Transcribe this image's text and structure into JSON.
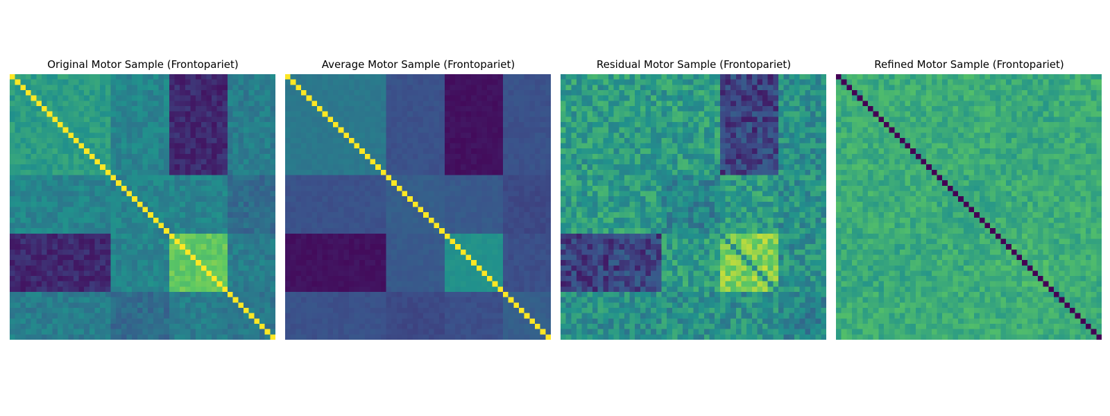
{
  "colormap": [
    "#440154",
    "#3b528b",
    "#21918c",
    "#5ec962",
    "#fde725"
  ],
  "chart_data": [
    {
      "type": "heatmap",
      "title": "Original Motor Sample (Frontopariet)",
      "size": 50,
      "colormap": "viridis",
      "axes": "off",
      "block_boundaries": [
        0,
        19,
        30,
        41,
        50
      ],
      "block_values": [
        [
          0.55,
          0.45,
          0.12,
          0.42
        ],
        [
          0.45,
          0.45,
          0.45,
          0.35
        ],
        [
          0.12,
          0.45,
          0.75,
          0.42
        ],
        [
          0.42,
          0.35,
          0.42,
          0.4
        ]
      ],
      "diagonal_value": 1.0,
      "noise": 0.06
    },
    {
      "type": "heatmap",
      "title": "Average Motor Sample (Frontopariet)",
      "size": 50,
      "colormap": "viridis",
      "axes": "off",
      "block_boundaries": [
        0,
        19,
        30,
        41,
        50
      ],
      "block_values": [
        [
          0.4,
          0.25,
          0.05,
          0.25
        ],
        [
          0.25,
          0.3,
          0.28,
          0.22
        ],
        [
          0.05,
          0.28,
          0.5,
          0.24
        ],
        [
          0.25,
          0.22,
          0.24,
          0.3
        ]
      ],
      "diagonal_value": 1.0,
      "noise": 0.02
    },
    {
      "type": "heatmap",
      "title": "Residual Motor Sample (Frontopariet)",
      "size": 50,
      "colormap": "viridis",
      "axes": "off",
      "block_boundaries": [
        0,
        19,
        30,
        41,
        50
      ],
      "block_values": [
        [
          0.55,
          0.55,
          0.2,
          0.5
        ],
        [
          0.55,
          0.45,
          0.55,
          0.5
        ],
        [
          0.2,
          0.55,
          0.8,
          0.5
        ],
        [
          0.5,
          0.5,
          0.5,
          0.45
        ]
      ],
      "diagonal_value": 0.45,
      "noise": 0.12
    },
    {
      "type": "heatmap",
      "title": "Refined Motor Sample (Frontopariet)",
      "size": 50,
      "colormap": "viridis",
      "axes": "off",
      "block_boundaries": [
        0,
        19,
        30,
        41,
        50
      ],
      "block_values": [
        [
          0.62,
          0.62,
          0.6,
          0.62
        ],
        [
          0.62,
          0.6,
          0.62,
          0.62
        ],
        [
          0.6,
          0.62,
          0.65,
          0.62
        ],
        [
          0.62,
          0.62,
          0.62,
          0.62
        ]
      ],
      "diagonal_value": 0.0,
      "noise": 0.08
    }
  ]
}
